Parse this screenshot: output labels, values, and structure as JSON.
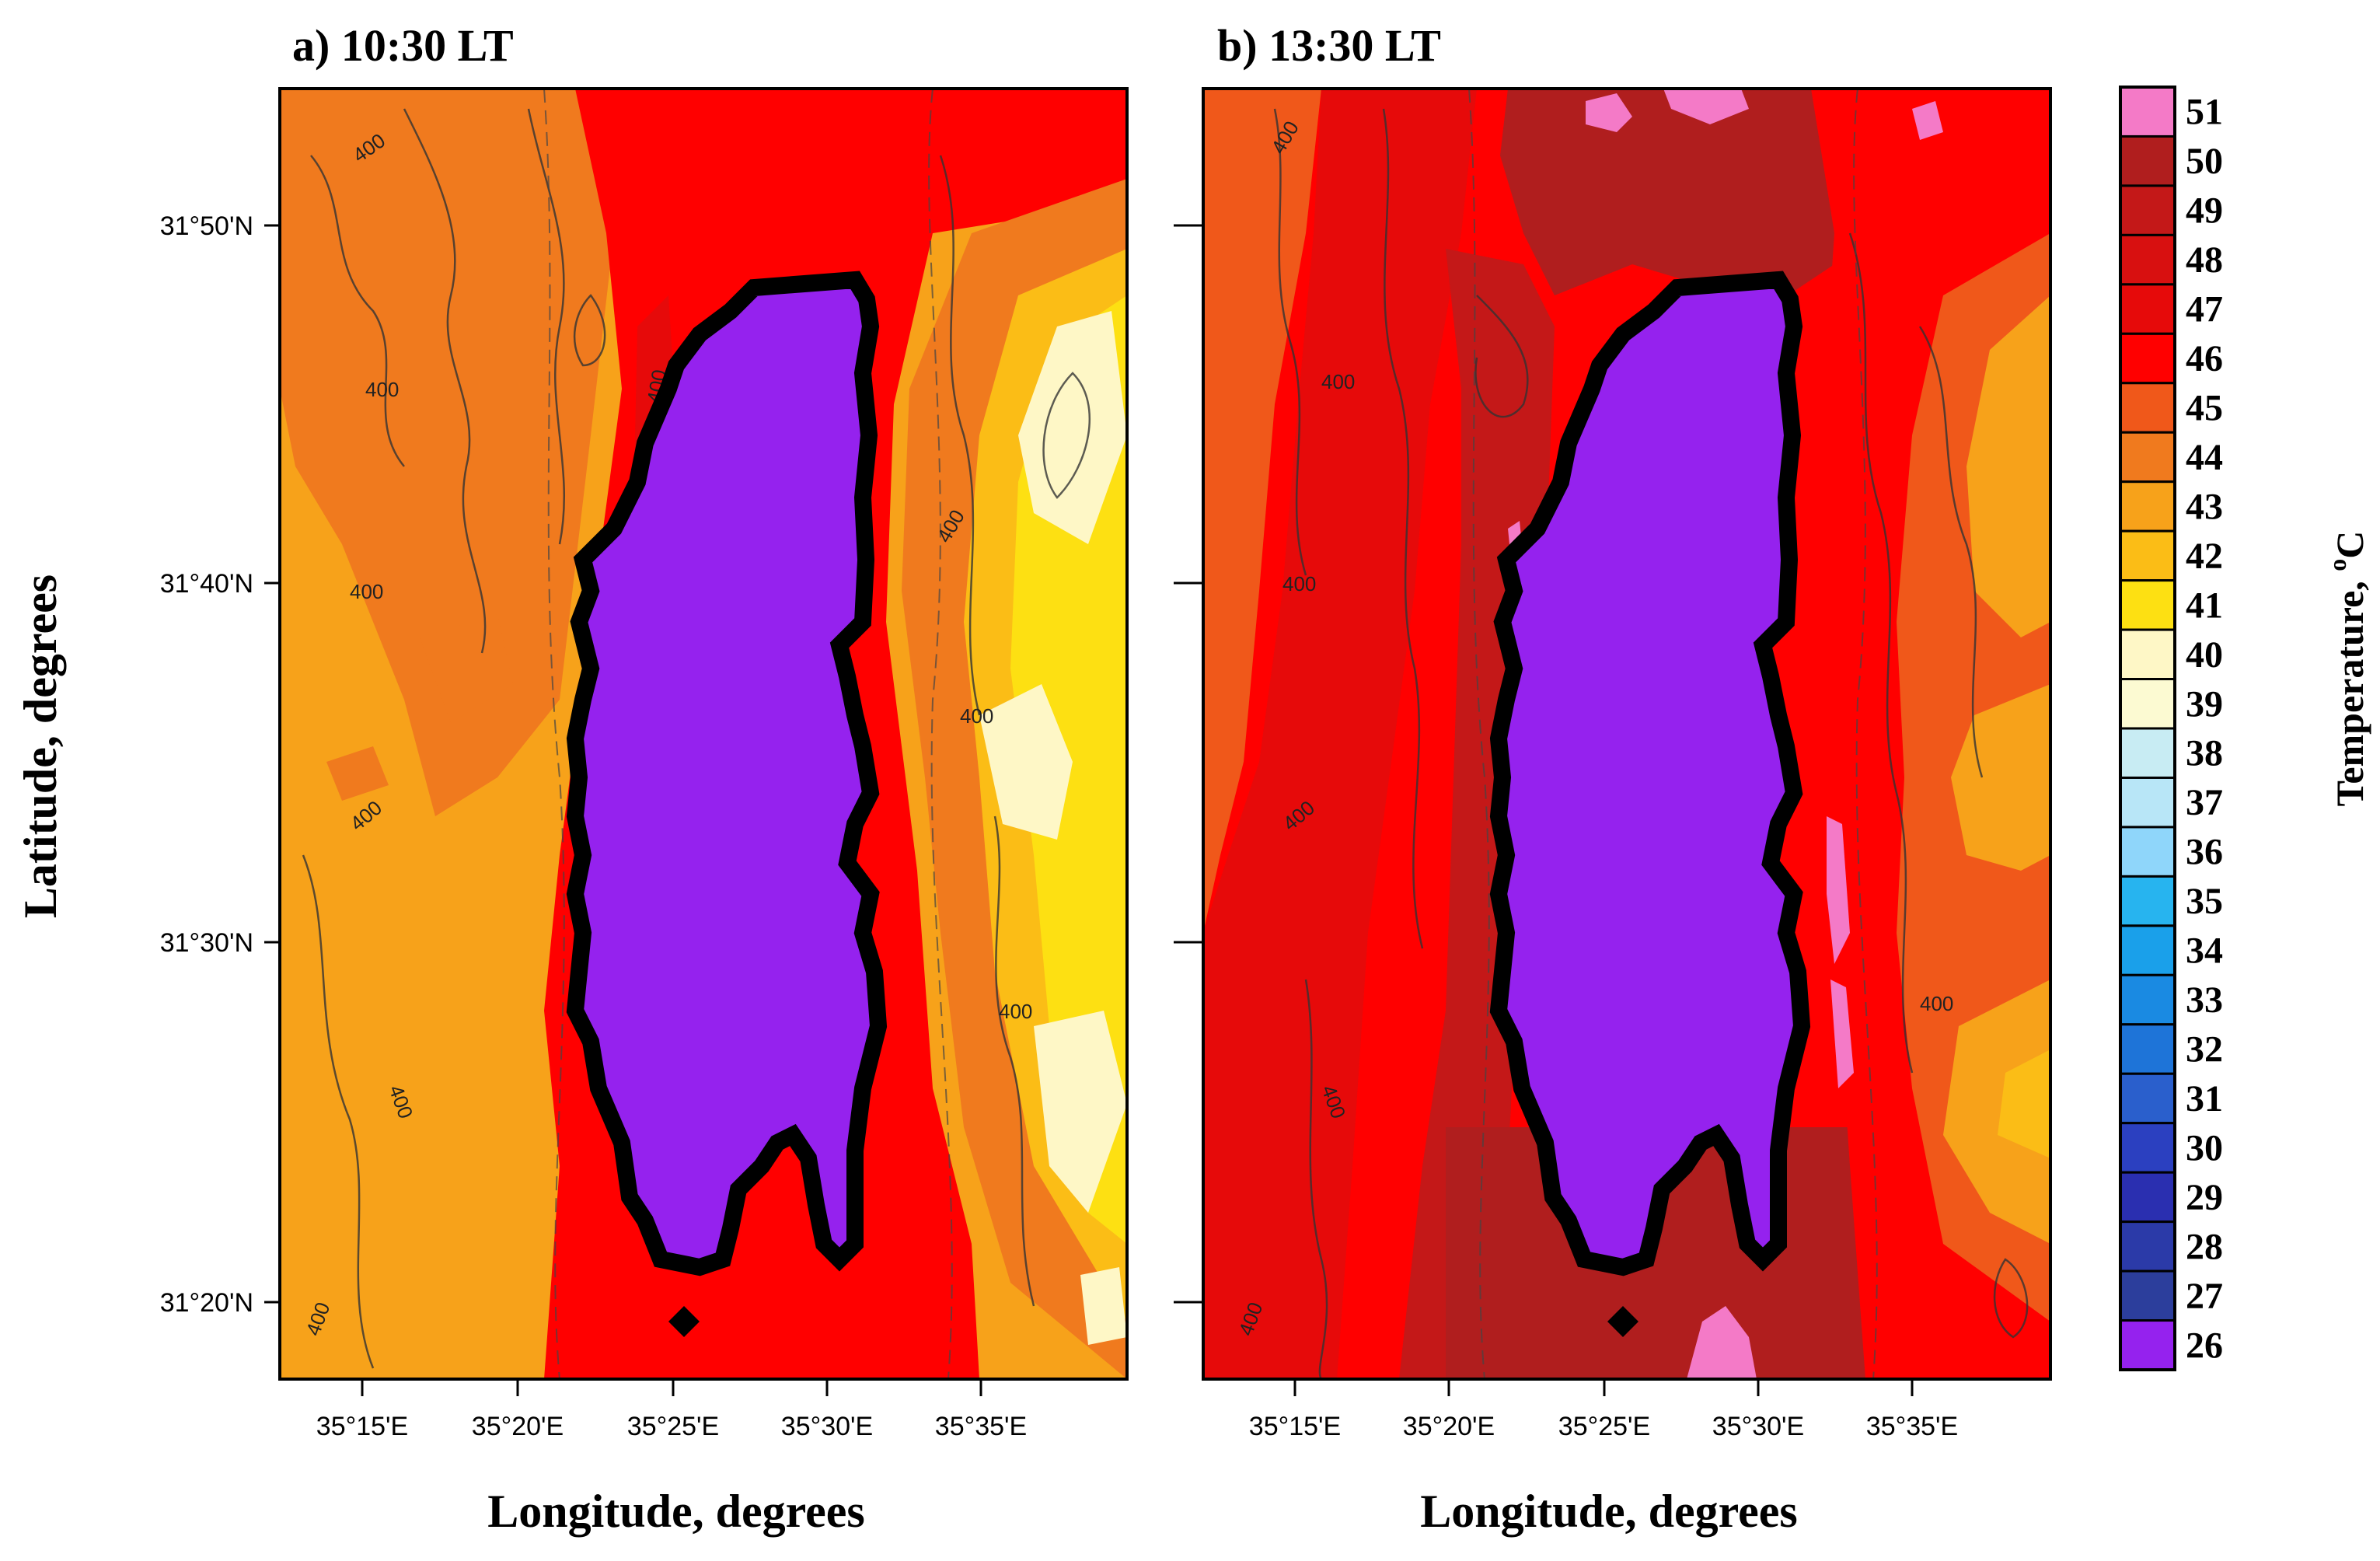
{
  "panels": [
    {
      "title": "a)  10:30 LT",
      "time": "10:30 LT"
    },
    {
      "title": "b)  13:30 LT",
      "time": "13:30 LT"
    }
  ],
  "axes": {
    "x_title": "Longitude,  degrees",
    "y_title": "Latitude,  degrees",
    "x_ticks": [
      "35°15'E",
      "35°20'E",
      "35°25'E",
      "35°30'E",
      "35°35'E"
    ],
    "y_ticks": [
      "31°50'N",
      "31°40'N",
      "31°30'N",
      "31°20'N"
    ]
  },
  "colorbar": {
    "title": "Temperature,  ",
    "unit_sup": "o",
    "unit": "C",
    "levels": [
      51,
      50,
      49,
      48,
      47,
      46,
      45,
      44,
      43,
      42,
      41,
      40,
      39,
      38,
      37,
      36,
      35,
      34,
      33,
      32,
      31,
      30,
      29,
      28,
      27,
      26
    ],
    "colors": [
      "#f47ac7",
      "#b01e1e",
      "#c41818",
      "#d81010",
      "#e60a0a",
      "#ff0000",
      "#f0581a",
      "#f07a1e",
      "#f7a21a",
      "#fbbd16",
      "#fde012",
      "#fef7c6",
      "#fcfad2",
      "#c8ecf3",
      "#b8e6f7",
      "#8fd6fa",
      "#27b4ef",
      "#1aa0ea",
      "#1a8ae2",
      "#1e74d8",
      "#2a5fcc",
      "#2b40c0",
      "#2a2fb0",
      "#2b3aa8",
      "#2c3e9c",
      "#9522ee"
    ]
  },
  "map_colors": {
    "lake": "#9522ee",
    "shoreline": "#000000",
    "outline": "#000000"
  },
  "contour_labels": {
    "a": [
      "400",
      "400",
      "400",
      "400",
      "400",
      "400",
      "400",
      "400",
      "400",
      "400"
    ],
    "b": [
      "400",
      "400",
      "400",
      "400",
      "400",
      "400",
      "400"
    ]
  },
  "chart_data": {
    "type": "heatmap",
    "description_units": "Temperature in degrees Celsius over longitude/latitude",
    "xlabel": "Longitude,  degrees",
    "ylabel": "Latitude,  degrees",
    "x_range_deg": [
      35.2,
      35.66
    ],
    "y_range_deg": [
      31.3,
      31.89
    ],
    "colorbar_range": [
      26,
      51
    ],
    "panels": [
      "a)  10:30 LT",
      "b)  13:30 LT"
    ]
  }
}
